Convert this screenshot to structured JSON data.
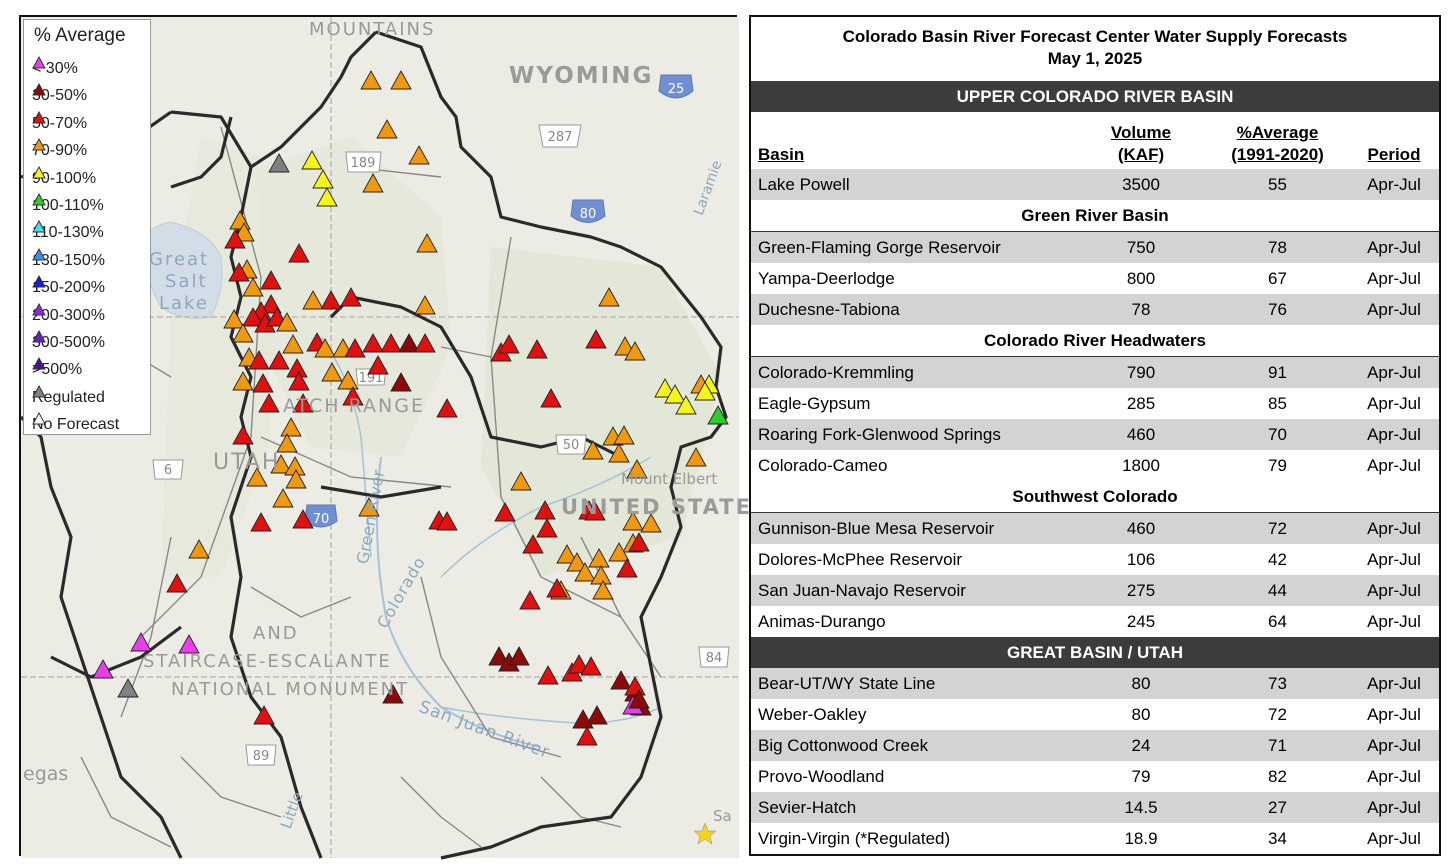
{
  "map": {
    "labels": {
      "mountains": "MOUNTAINS",
      "wyoming": "WYOMING",
      "great_salt_lake": [
        "Great",
        "Salt",
        "Lake"
      ],
      "utah": "UTAH",
      "range": "ATCH RANGE",
      "united_states": "UNITED STATES",
      "mount_elbert": "Mount Elbert",
      "laramie": "Laramie",
      "green_river": "Green River",
      "colorado_river": "Colorado",
      "san_juan_river": "San Juan River",
      "monument": [
        "AND",
        "STAIRCASE-ESCALANTE",
        "NATIONAL MONUMENT"
      ],
      "vegas": "egas",
      "little": "Little",
      "sa": "Sa",
      "shields": [
        "25",
        "287",
        "189",
        "80",
        "6",
        "191",
        "50",
        "70",
        "84",
        "89"
      ]
    },
    "legend": {
      "title": "% Average",
      "items": [
        {
          "label": "< 30%",
          "color": "#e83ee8"
        },
        {
          "label": "30-50%",
          "color": "#8b0a0a"
        },
        {
          "label": "50-70%",
          "color": "#e01010"
        },
        {
          "label": "70-90%",
          "color": "#f0980e"
        },
        {
          "label": "90-100%",
          "color": "#f5f51a"
        },
        {
          "label": "100-110%",
          "color": "#2ecc2e"
        },
        {
          "label": "110-130%",
          "color": "#40e0f0"
        },
        {
          "label": "130-150%",
          "color": "#3a8ef0"
        },
        {
          "label": "150-200%",
          "color": "#1a1ae0"
        },
        {
          "label": "200-300%",
          "color": "#8a2be2"
        },
        {
          "label": "300-500%",
          "color": "#6a1fc0"
        },
        {
          "label": ">500%",
          "color": "#4b0e8f"
        },
        {
          "label": "Regulated",
          "color": "#808080"
        },
        {
          "label": "No Forecast",
          "color": "#ffffff"
        }
      ]
    }
  },
  "table": {
    "title_line1": "Colorado Basin River Forecast Center Water Supply Forecasts",
    "title_line2": "May 1, 2025",
    "upper_header": "UPPER COLORADO RIVER BASIN",
    "col_basin": "Basin",
    "col_volume": [
      "Volume",
      "(KAF)"
    ],
    "col_pct": [
      "%Average",
      "(1991-2020)"
    ],
    "col_period": "Period",
    "rows": {
      "lake_powell": [
        "Lake Powell",
        "3500",
        "55",
        "Apr-Jul"
      ],
      "green_header": "Green River Basin",
      "green": [
        [
          "Green-Flaming Gorge Reservoir",
          "750",
          "78",
          "Apr-Jul"
        ],
        [
          "Yampa-Deerlodge",
          "800",
          "67",
          "Apr-Jul"
        ],
        [
          "Duchesne-Tabiona",
          "78",
          "76",
          "Apr-Jul"
        ]
      ],
      "headwaters_header": "Colorado River Headwaters",
      "headwaters": [
        [
          "Colorado-Kremmling",
          "790",
          "91",
          "Apr-Jul"
        ],
        [
          "Eagle-Gypsum",
          "285",
          "85",
          "Apr-Jul"
        ],
        [
          "Roaring Fork-Glenwood Springs",
          "460",
          "70",
          "Apr-Jul"
        ],
        [
          "Colorado-Cameo",
          "1800",
          "79",
          "Apr-Jul"
        ]
      ],
      "southwest_header": "Southwest Colorado",
      "southwest": [
        [
          "Gunnison-Blue Mesa Reservoir",
          "460",
          "72",
          "Apr-Jul"
        ],
        [
          "Dolores-McPhee Reservoir",
          "106",
          "42",
          "Apr-Jul"
        ],
        [
          "San Juan-Navajo Reservoir",
          "275",
          "44",
          "Apr-Jul"
        ],
        [
          "Animas-Durango",
          "245",
          "64",
          "Apr-Jul"
        ]
      ],
      "great_basin_header": "GREAT BASIN / UTAH",
      "great_basin": [
        [
          "Bear-UT/WY State Line",
          "80",
          "73",
          "Apr-Jul"
        ],
        [
          "Weber-Oakley",
          "80",
          "72",
          "Apr-Jul"
        ],
        [
          "Big Cottonwood Creek",
          "24",
          "71",
          "Apr-Jul"
        ],
        [
          "Provo-Woodland",
          "79",
          "82",
          "Apr-Jul"
        ],
        [
          "Sevier-Hatch",
          "14.5",
          "27",
          "Apr-Jul"
        ],
        [
          "Virgin-Virgin (*Regulated)",
          "18.9",
          "34",
          "Apr-Jul"
        ]
      ]
    }
  }
}
